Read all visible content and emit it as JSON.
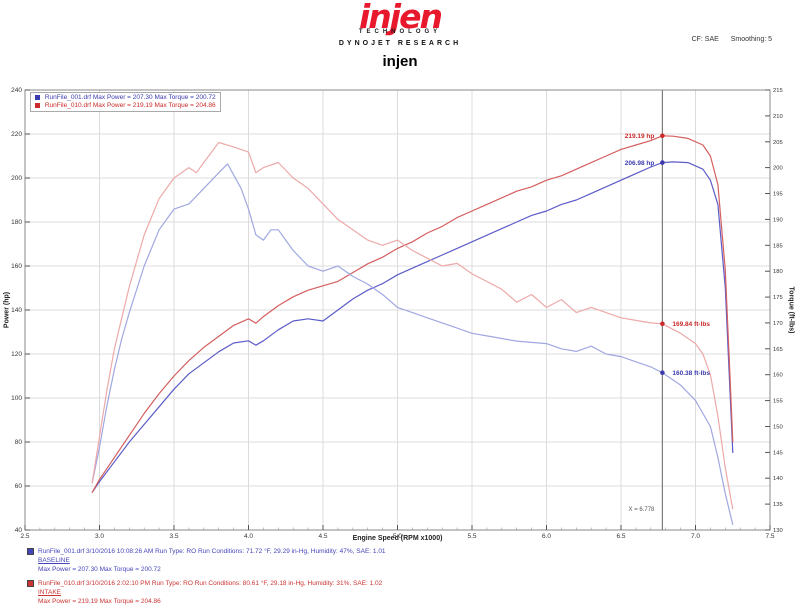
{
  "header": {
    "logo_text": "injen",
    "logo_subtext": "TECHNOLOGY",
    "dynojet_text": "DYNOJET RESEARCH",
    "correction_label": "CF: SAE",
    "smoothing_label": "Smoothing: 5",
    "chart_title": "injen"
  },
  "legend": {
    "rows": [
      {
        "color": "#3b3bb0",
        "text": "RunFile_001.drf Max Power = 207.30    Max Torque = 200.72"
      },
      {
        "color": "#cc2a2a",
        "text": "RunFile_010.drf Max Power = 219.19    Max Torque = 204.86"
      }
    ]
  },
  "chart_data": {
    "type": "line",
    "title": "injen",
    "xlabel": "Engine Speed (RPM x1000)",
    "ylabel_left": "Power (hp)",
    "ylabel_right": "Torque (ft-lbs)",
    "x_range": [
      2.5,
      7.5
    ],
    "y_left_range": [
      40,
      240
    ],
    "y_right_range": [
      130,
      215
    ],
    "x_ticks": [
      2.5,
      3.0,
      3.5,
      4.0,
      4.5,
      5.0,
      5.5,
      6.0,
      6.5,
      7.0,
      7.5
    ],
    "y_left_ticks": [
      240,
      220,
      200,
      180,
      160,
      140,
      120,
      100,
      80,
      60,
      40
    ],
    "y_right_ticks": [
      215,
      210,
      205,
      200,
      195,
      190,
      185,
      180,
      175,
      170,
      165,
      160,
      155,
      150,
      145,
      140,
      135,
      130
    ],
    "grid": true,
    "legend_position": "top-left",
    "cursor": {
      "x": 6.778,
      "label": "X = 6.778",
      "markers": [
        {
          "text": "219.19 hp",
          "axis": "left",
          "value": 219.19,
          "color": "#cc2a2a",
          "side": "left"
        },
        {
          "text": "206.98 hp",
          "axis": "left",
          "value": 206.98,
          "color": "#3b3bb0",
          "side": "left"
        },
        {
          "text": "169.84 ft-lbs",
          "axis": "right",
          "value": 169.84,
          "color": "#cc2a2a",
          "side": "right"
        },
        {
          "text": "160.38 ft-lbs",
          "axis": "right",
          "value": 160.38,
          "color": "#3b3bb0",
          "side": "right"
        }
      ]
    },
    "series": [
      {
        "name": "baseline-power",
        "label": "RunFile_001.drf Power",
        "axis": "left",
        "color": "#5c5cc8",
        "points": [
          [
            2.95,
            57
          ],
          [
            3.0,
            62
          ],
          [
            3.1,
            71
          ],
          [
            3.2,
            80
          ],
          [
            3.3,
            88
          ],
          [
            3.4,
            96
          ],
          [
            3.5,
            104
          ],
          [
            3.6,
            111
          ],
          [
            3.7,
            116
          ],
          [
            3.8,
            121
          ],
          [
            3.9,
            125
          ],
          [
            4.0,
            126
          ],
          [
            4.05,
            124
          ],
          [
            4.1,
            126
          ],
          [
            4.2,
            131
          ],
          [
            4.3,
            135
          ],
          [
            4.4,
            136
          ],
          [
            4.5,
            135
          ],
          [
            4.6,
            140
          ],
          [
            4.7,
            145
          ],
          [
            4.8,
            149
          ],
          [
            4.9,
            152
          ],
          [
            5.0,
            156
          ],
          [
            5.1,
            159
          ],
          [
            5.2,
            162
          ],
          [
            5.3,
            165
          ],
          [
            5.4,
            168
          ],
          [
            5.5,
            171
          ],
          [
            5.6,
            174
          ],
          [
            5.7,
            177
          ],
          [
            5.8,
            180
          ],
          [
            5.9,
            183
          ],
          [
            6.0,
            185
          ],
          [
            6.1,
            188
          ],
          [
            6.2,
            190
          ],
          [
            6.3,
            193
          ],
          [
            6.4,
            196
          ],
          [
            6.5,
            199
          ],
          [
            6.6,
            202
          ],
          [
            6.7,
            205
          ],
          [
            6.778,
            206.98
          ],
          [
            6.85,
            207.3
          ],
          [
            6.95,
            207
          ],
          [
            7.05,
            204
          ],
          [
            7.1,
            199
          ],
          [
            7.15,
            188
          ],
          [
            7.2,
            150
          ],
          [
            7.23,
            105
          ],
          [
            7.25,
            75
          ]
        ]
      },
      {
        "name": "intake-power",
        "label": "RunFile_010.drf Power",
        "axis": "left",
        "color": "#d45f5f",
        "points": [
          [
            2.95,
            57
          ],
          [
            3.0,
            63
          ],
          [
            3.1,
            73
          ],
          [
            3.2,
            83
          ],
          [
            3.3,
            93
          ],
          [
            3.4,
            102
          ],
          [
            3.5,
            110
          ],
          [
            3.6,
            117
          ],
          [
            3.7,
            123
          ],
          [
            3.8,
            128
          ],
          [
            3.9,
            133
          ],
          [
            4.0,
            136
          ],
          [
            4.05,
            134
          ],
          [
            4.1,
            137
          ],
          [
            4.2,
            142
          ],
          [
            4.3,
            146
          ],
          [
            4.4,
            149
          ],
          [
            4.5,
            151
          ],
          [
            4.6,
            153
          ],
          [
            4.7,
            157
          ],
          [
            4.8,
            161
          ],
          [
            4.9,
            164
          ],
          [
            5.0,
            168
          ],
          [
            5.1,
            171
          ],
          [
            5.2,
            175
          ],
          [
            5.3,
            178
          ],
          [
            5.4,
            182
          ],
          [
            5.5,
            185
          ],
          [
            5.6,
            188
          ],
          [
            5.7,
            191
          ],
          [
            5.8,
            194
          ],
          [
            5.9,
            196
          ],
          [
            6.0,
            199
          ],
          [
            6.1,
            201
          ],
          [
            6.2,
            204
          ],
          [
            6.3,
            207
          ],
          [
            6.4,
            210
          ],
          [
            6.5,
            213
          ],
          [
            6.6,
            215
          ],
          [
            6.7,
            217
          ],
          [
            6.778,
            219.19
          ],
          [
            6.85,
            219
          ],
          [
            6.95,
            218
          ],
          [
            7.05,
            215
          ],
          [
            7.1,
            210
          ],
          [
            7.15,
            197
          ],
          [
            7.2,
            158
          ],
          [
            7.23,
            112
          ],
          [
            7.25,
            80
          ]
        ]
      },
      {
        "name": "baseline-torque",
        "label": "RunFile_001.drf Torque",
        "axis": "right",
        "color": "#a0a8e0",
        "points": [
          [
            2.95,
            139
          ],
          [
            3.0,
            146
          ],
          [
            3.05,
            154
          ],
          [
            3.1,
            161
          ],
          [
            3.15,
            167
          ],
          [
            3.2,
            172
          ],
          [
            3.3,
            181
          ],
          [
            3.4,
            188
          ],
          [
            3.5,
            192
          ],
          [
            3.6,
            193
          ],
          [
            3.7,
            196
          ],
          [
            3.8,
            199
          ],
          [
            3.86,
            200.72
          ],
          [
            3.95,
            196
          ],
          [
            4.0,
            192
          ],
          [
            4.05,
            187
          ],
          [
            4.1,
            186
          ],
          [
            4.15,
            188
          ],
          [
            4.2,
            188
          ],
          [
            4.3,
            184
          ],
          [
            4.4,
            181
          ],
          [
            4.5,
            180
          ],
          [
            4.6,
            181
          ],
          [
            4.7,
            179
          ],
          [
            4.8,
            177.5
          ],
          [
            4.9,
            175.5
          ],
          [
            5.0,
            173
          ],
          [
            5.1,
            172
          ],
          [
            5.2,
            171
          ],
          [
            5.3,
            170
          ],
          [
            5.4,
            169
          ],
          [
            5.5,
            168
          ],
          [
            5.6,
            167.5
          ],
          [
            5.7,
            167
          ],
          [
            5.8,
            166.5
          ],
          [
            6.0,
            166
          ],
          [
            6.1,
            165
          ],
          [
            6.2,
            164.5
          ],
          [
            6.3,
            165.5
          ],
          [
            6.4,
            164
          ],
          [
            6.5,
            163.5
          ],
          [
            6.6,
            162.5
          ],
          [
            6.7,
            161.5
          ],
          [
            6.778,
            160.38
          ],
          [
            6.9,
            158
          ],
          [
            7.0,
            155
          ],
          [
            7.1,
            150
          ],
          [
            7.15,
            144
          ],
          [
            7.2,
            137
          ],
          [
            7.25,
            131
          ]
        ]
      },
      {
        "name": "intake-torque",
        "label": "RunFile_010.drf Torque",
        "axis": "right",
        "color": "#eda9a9",
        "points": [
          [
            2.95,
            139
          ],
          [
            3.0,
            148
          ],
          [
            3.05,
            157
          ],
          [
            3.1,
            165
          ],
          [
            3.15,
            171
          ],
          [
            3.2,
            177
          ],
          [
            3.3,
            187
          ],
          [
            3.4,
            194
          ],
          [
            3.5,
            198
          ],
          [
            3.6,
            200
          ],
          [
            3.65,
            199
          ],
          [
            3.7,
            201
          ],
          [
            3.8,
            204.86
          ],
          [
            3.9,
            204
          ],
          [
            4.0,
            203
          ],
          [
            4.05,
            199
          ],
          [
            4.1,
            200
          ],
          [
            4.2,
            201
          ],
          [
            4.3,
            198
          ],
          [
            4.4,
            196
          ],
          [
            4.5,
            193
          ],
          [
            4.6,
            190
          ],
          [
            4.7,
            188
          ],
          [
            4.8,
            186
          ],
          [
            4.9,
            185
          ],
          [
            5.0,
            186
          ],
          [
            5.1,
            184
          ],
          [
            5.2,
            182.5
          ],
          [
            5.3,
            181
          ],
          [
            5.4,
            181.5
          ],
          [
            5.5,
            179.5
          ],
          [
            5.6,
            178
          ],
          [
            5.7,
            176.5
          ],
          [
            5.8,
            174
          ],
          [
            5.9,
            175.5
          ],
          [
            6.0,
            173
          ],
          [
            6.1,
            174.5
          ],
          [
            6.2,
            172
          ],
          [
            6.3,
            173
          ],
          [
            6.4,
            172
          ],
          [
            6.5,
            171
          ],
          [
            6.6,
            170.5
          ],
          [
            6.7,
            170
          ],
          [
            6.778,
            169.84
          ],
          [
            6.9,
            168
          ],
          [
            7.0,
            166
          ],
          [
            7.05,
            164
          ],
          [
            7.1,
            160
          ],
          [
            7.15,
            152
          ],
          [
            7.2,
            142
          ],
          [
            7.25,
            134
          ]
        ]
      }
    ]
  },
  "footer": {
    "runs": [
      {
        "color": "#4444bb",
        "details": "RunFile_001.drf  3/10/2016 10:08:26 AM  Run Type: RO  Run Conditions: 71.72 °F, 29.29 in-Hg,  Humidity: 47%, SAE: 1.01",
        "label": "BASELINE",
        "summary": "Max Power = 207.30  Max Torque = 200.72"
      },
      {
        "color": "#cc3333",
        "details": "RunFile_010.drf  3/10/2016 2:02:10 PM  Run Type: RO  Run Conditions: 80.61 °F, 29.18 in-Hg,  Humidity: 31%, SAE: 1.02",
        "label": "INTAKE",
        "summary": "Max Power = 219.19  Max Torque = 204.86"
      }
    ]
  }
}
